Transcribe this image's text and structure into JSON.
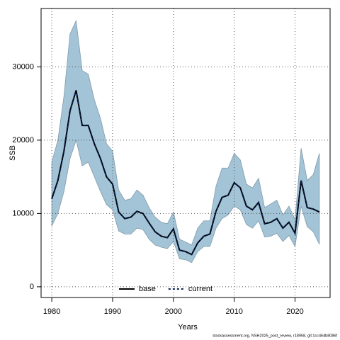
{
  "chart_data": {
    "type": "line",
    "xlabel": "Years",
    "ylabel": "SSB",
    "footnote": "stockassessment.org, NSH2025_post_review, r18958, git:1cc464b8086f",
    "x": [
      1980,
      1981,
      1982,
      1983,
      1984,
      1985,
      1986,
      1987,
      1988,
      1989,
      1990,
      1991,
      1992,
      1993,
      1994,
      1995,
      1996,
      1997,
      1998,
      1999,
      2000,
      2001,
      2002,
      2003,
      2004,
      2005,
      2006,
      2007,
      2008,
      2009,
      2010,
      2011,
      2012,
      2013,
      2014,
      2015,
      2016,
      2017,
      2018,
      2019,
      2020,
      2021,
      2022,
      2023,
      2024
    ],
    "series": [
      {
        "name": "base",
        "color": "#000000",
        "dash": false,
        "values": [
          12000,
          14500,
          18500,
          24000,
          26800,
          22000,
          22000,
          19500,
          17500,
          15000,
          14000,
          10200,
          9300,
          9500,
          10300,
          10000,
          8700,
          7500,
          6900,
          6700,
          7900,
          5000,
          4800,
          4400,
          6000,
          6900,
          7200,
          10300,
          12200,
          12500,
          14200,
          13500,
          11000,
          10500,
          11500,
          8600,
          8800,
          9300,
          8000,
          8800,
          7300,
          14500,
          10800,
          10600,
          10200
        ]
      },
      {
        "name": "current",
        "color": "#0a1f4d",
        "dash": true,
        "values": [
          12000,
          14500,
          18500,
          24000,
          26800,
          22000,
          22000,
          19500,
          17500,
          15000,
          14000,
          10200,
          9300,
          9500,
          10300,
          10000,
          8700,
          7500,
          6900,
          6700,
          7900,
          5000,
          4800,
          4400,
          6000,
          6900,
          7200,
          10300,
          12200,
          12500,
          14200,
          13500,
          11000,
          10500,
          11500,
          8600,
          8800,
          9300,
          8000,
          8800,
          7300,
          14500,
          10800,
          10600,
          10200
        ]
      }
    ],
    "band": {
      "color": "#a3c4d6",
      "lower": [
        8300,
        10000,
        13000,
        17500,
        20000,
        16500,
        17000,
        15000,
        13000,
        11200,
        10500,
        7600,
        7200,
        7200,
        8000,
        7800,
        6500,
        5700,
        5400,
        5200,
        6200,
        3800,
        3700,
        3300,
        4800,
        5500,
        5500,
        8000,
        9300,
        9800,
        11000,
        10500,
        8500,
        8000,
        9000,
        6800,
        6900,
        7300,
        6200,
        7000,
        5500,
        11000,
        8200,
        7500,
        5800
      ],
      "upper": [
        17000,
        20000,
        26000,
        34500,
        36300,
        29500,
        29000,
        25500,
        23000,
        19500,
        18500,
        13200,
        11800,
        12000,
        13200,
        12500,
        10800,
        9500,
        8800,
        8600,
        10200,
        6500,
        6100,
        5700,
        8000,
        9000,
        9000,
        13700,
        16200,
        16200,
        18200,
        17300,
        14000,
        13500,
        14800,
        10800,
        11300,
        11800,
        9800,
        11000,
        9200,
        18900,
        14500,
        15300,
        18200
      ]
    },
    "xlim": [
      1978.24,
      2025.76
    ],
    "ylim": [
      -1460,
      37960
    ],
    "xticks": [
      1980,
      1990,
      2000,
      2010,
      2020
    ],
    "yticks": [
      0,
      10000,
      20000,
      30000
    ],
    "grid": true,
    "legend": "bottom"
  }
}
